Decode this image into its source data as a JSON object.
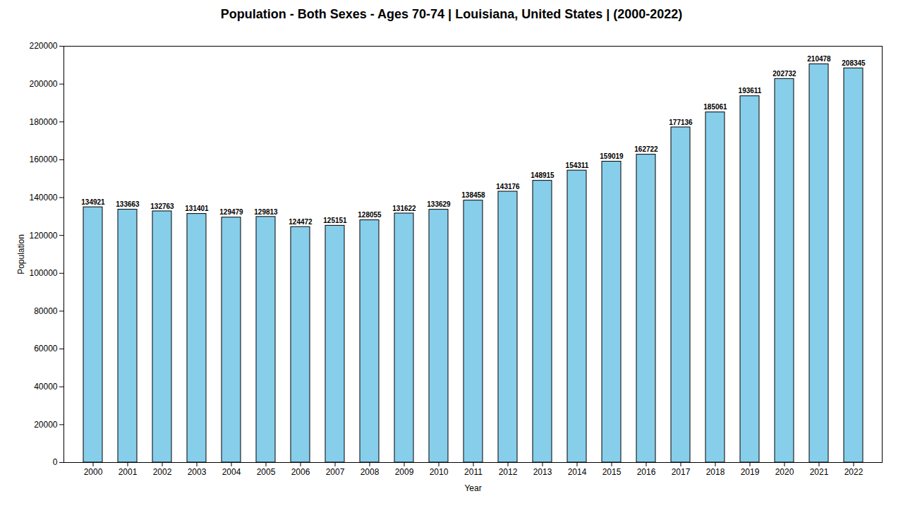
{
  "chart_data": {
    "type": "bar",
    "title": "Population - Both Sexes - Ages 70-74 | Louisiana, United States |  (2000-2022)",
    "xlabel": "Year",
    "ylabel": "Population",
    "categories": [
      "2000",
      "2001",
      "2002",
      "2003",
      "2004",
      "2005",
      "2006",
      "2007",
      "2008",
      "2009",
      "2010",
      "2011",
      "2012",
      "2013",
      "2014",
      "2015",
      "2016",
      "2017",
      "2018",
      "2019",
      "2020",
      "2021",
      "2022"
    ],
    "values": [
      134921,
      133663,
      132763,
      131401,
      129479,
      129813,
      124472,
      125151,
      128055,
      131622,
      133629,
      138458,
      143176,
      148915,
      154311,
      159019,
      162722,
      177136,
      185061,
      193611,
      202732,
      210478,
      208345
    ],
    "color": "#87CEEB",
    "ylim": [
      0,
      220000
    ],
    "yticks": [
      0,
      20000,
      40000,
      60000,
      80000,
      100000,
      120000,
      140000,
      160000,
      180000,
      200000,
      220000
    ],
    "grid": false,
    "data_labels": true
  }
}
